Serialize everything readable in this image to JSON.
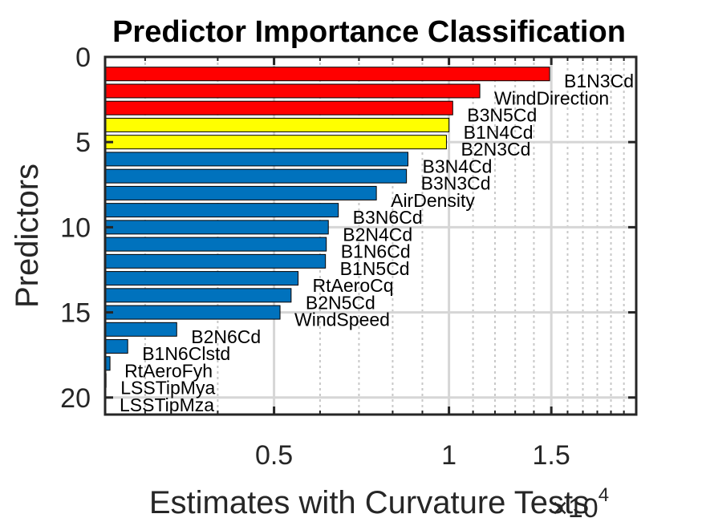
{
  "chart_data": {
    "type": "bar",
    "orientation": "horizontal",
    "title": "Predictor Importance Classification",
    "xlabel": "Estimates with Curvature Tests",
    "ylabel": "Predictors",
    "x_scale": "log",
    "x_multiplier_label": "×10",
    "x_multiplier_exponent": "4",
    "xlim": [
      2560,
      21000
    ],
    "ylim": [
      0,
      21
    ],
    "x_ticks": [
      5000,
      10000,
      15000
    ],
    "x_tick_labels": [
      "0.5",
      "1",
      "1.5"
    ],
    "y_ticks": [
      0,
      5,
      10,
      15,
      20
    ],
    "y_tick_labels": [
      "0",
      "5",
      "10",
      "15",
      "20"
    ],
    "grid": true,
    "legend": "none",
    "colors": {
      "red": "#ff0000",
      "yellow": "#ffff00",
      "blue": "#0072bd"
    },
    "bars": [
      {
        "label": "B1N3Cd",
        "value": 14900,
        "color": "red"
      },
      {
        "label": "WindDirection",
        "value": 11300,
        "color": "red"
      },
      {
        "label": "B3N5Cd",
        "value": 10150,
        "color": "red"
      },
      {
        "label": "B1N4Cd",
        "value": 10000,
        "color": "yellow"
      },
      {
        "label": "B2N3Cd",
        "value": 9900,
        "color": "yellow"
      },
      {
        "label": "B3N4Cd",
        "value": 8500,
        "color": "blue"
      },
      {
        "label": "B3N3Cd",
        "value": 8450,
        "color": "blue"
      },
      {
        "label": "AirDensity",
        "value": 7500,
        "color": "blue"
      },
      {
        "label": "B3N6Cd",
        "value": 6450,
        "color": "blue"
      },
      {
        "label": "B2N4Cd",
        "value": 6200,
        "color": "blue"
      },
      {
        "label": "B1N6Cd",
        "value": 6150,
        "color": "blue"
      },
      {
        "label": "B1N5Cd",
        "value": 6130,
        "color": "blue"
      },
      {
        "label": "RtAeroCq",
        "value": 5500,
        "color": "blue"
      },
      {
        "label": "B2N5Cd",
        "value": 5350,
        "color": "blue"
      },
      {
        "label": "WindSpeed",
        "value": 5120,
        "color": "blue"
      },
      {
        "label": "B2N6Cd",
        "value": 3400,
        "color": "blue"
      },
      {
        "label": "B1N6Clstd",
        "value": 2800,
        "color": "blue"
      },
      {
        "label": "RtAeroFyh",
        "value": 2610,
        "color": "blue"
      },
      {
        "label": "LSSTipMya",
        "value": 2570,
        "color": "blue"
      },
      {
        "label": "LSSTipMza",
        "value": 2560,
        "color": "blue"
      }
    ]
  }
}
